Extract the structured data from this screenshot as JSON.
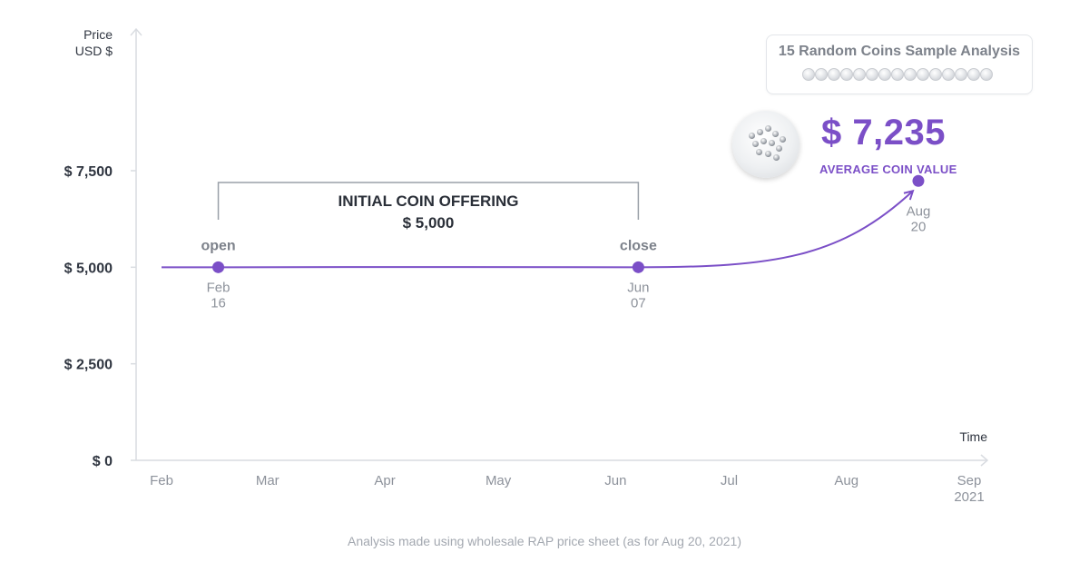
{
  "chart_data": {
    "type": "line",
    "ylabel": [
      "Price",
      "USD $"
    ],
    "xlabel": "Time",
    "yticks": [
      {
        "value": 7500,
        "label": "$ 7,500"
      },
      {
        "value": 5000,
        "label": "$ 5,000"
      },
      {
        "value": 2500,
        "label": "$ 2,500"
      },
      {
        "value": 0,
        "label": "$ 0"
      }
    ],
    "ylim": [
      0,
      11000
    ],
    "xlim": [
      "2021-02-01",
      "2021-09-01"
    ],
    "xticks": [
      {
        "date": "2021-02-01",
        "label": [
          "Feb"
        ]
      },
      {
        "date": "2021-03-01",
        "label": [
          "Mar"
        ]
      },
      {
        "date": "2021-04-01",
        "label": [
          "Apr"
        ]
      },
      {
        "date": "2021-05-01",
        "label": [
          "May"
        ]
      },
      {
        "date": "2021-06-01",
        "label": [
          "Jun"
        ]
      },
      {
        "date": "2021-07-01",
        "label": [
          "Jul"
        ]
      },
      {
        "date": "2021-08-01",
        "label": [
          "Aug"
        ]
      },
      {
        "date": "2021-09-01",
        "label": [
          "Sep",
          "2021"
        ]
      }
    ],
    "series": [
      {
        "points": [
          {
            "x": "2021-02-01",
            "y": 5000
          },
          {
            "x": "2021-02-16",
            "y": 5000
          },
          {
            "x": "2021-04-01",
            "y": 5005
          },
          {
            "x": "2021-06-07",
            "y": 5000
          },
          {
            "x": "2021-07-15",
            "y": 5300
          },
          {
            "x": "2021-08-20",
            "y": 7235
          }
        ]
      }
    ],
    "points": [
      {
        "x": "2021-02-16",
        "y": 5000,
        "label": "open",
        "date": [
          "Feb",
          "16"
        ]
      },
      {
        "x": "2021-06-07",
        "y": 5000,
        "label": "close",
        "date": [
          "Jun",
          "07"
        ]
      },
      {
        "x": "2021-08-20",
        "y": 7235,
        "label": "",
        "date": [
          "Aug",
          "20"
        ]
      }
    ],
    "annotation": {
      "title": "INITIAL COIN OFFERING",
      "value": "$ 5,000",
      "from": "2021-02-16",
      "to": "2021-06-07"
    },
    "highlight": {
      "value": "$ 7,235",
      "label": "AVERAGE COIN VALUE"
    },
    "colors": {
      "series": "#7b4fc7",
      "axis": "#d9dce1"
    }
  },
  "sample": {
    "title": "15 Random Coins Sample Analysis",
    "coin_count": 15
  },
  "footer": "Analysis made using wholesale RAP price sheet (as for Aug 20, 2021)"
}
